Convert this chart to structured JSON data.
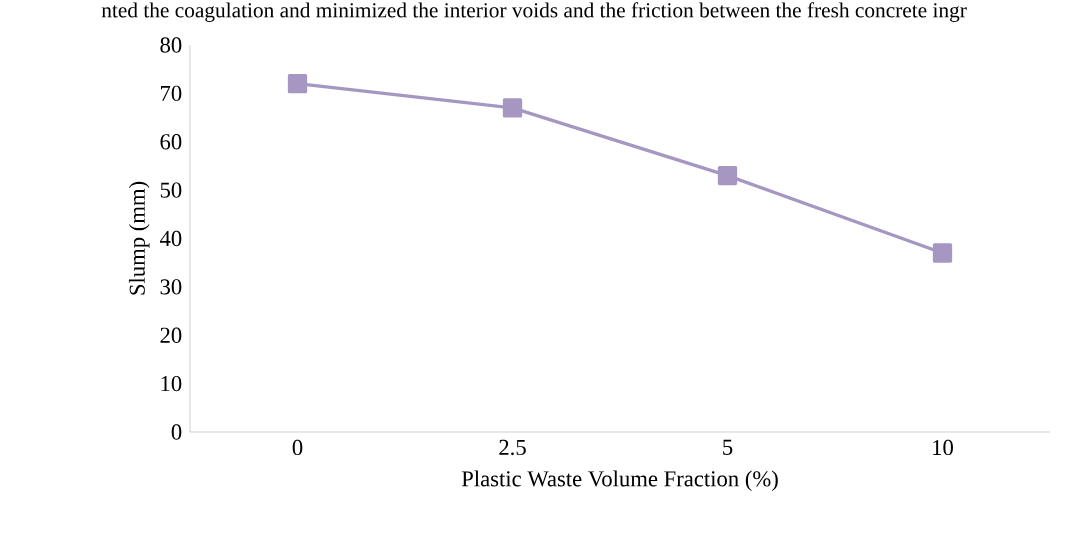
{
  "chart_data": {
    "type": "line",
    "xlabel": "Plastic Waste Volume Fraction (%)",
    "ylabel": "Slump  (mm)",
    "annotations": [
      "nted the coagulation and minimized the interior voids and the friction between the fresh concrete ingr"
    ],
    "categories": [
      "0",
      "2.5",
      "5",
      "10"
    ],
    "series": [
      {
        "color": "#a597c2",
        "values": [
          72,
          67,
          53,
          37
        ]
      }
    ],
    "ylim": [
      0,
      80
    ],
    "yticks": [
      0,
      10,
      20,
      30,
      40,
      50,
      60,
      70,
      80
    ],
    "grid": false,
    "marker": "square",
    "line_style": "solid"
  }
}
